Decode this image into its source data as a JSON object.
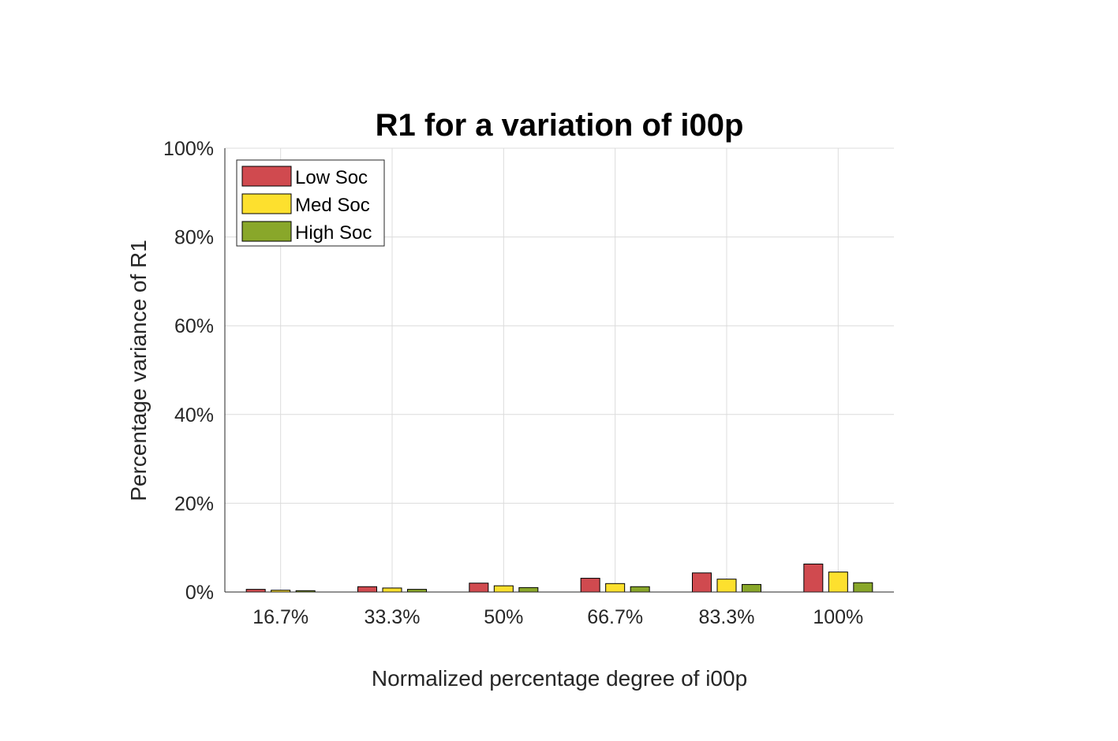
{
  "chart_data": {
    "type": "bar",
    "title": "R1 for a variation of i00p",
    "xlabel": "Normalized percentage degree of i00p",
    "ylabel": "Percentage variance of R1",
    "categories": [
      "16.7%",
      "33.3%",
      "50%",
      "66.7%",
      "83.3%",
      "100%"
    ],
    "series": [
      {
        "name": "Low Soc",
        "color": "#d04a4f",
        "values": [
          0.6,
          1.2,
          2.0,
          3.1,
          4.3,
          6.3
        ]
      },
      {
        "name": "Med Soc",
        "color": "#fde02e",
        "values": [
          0.4,
          0.9,
          1.4,
          1.9,
          2.9,
          4.5
        ]
      },
      {
        "name": "High Soc",
        "color": "#89a72a",
        "values": [
          0.3,
          0.6,
          1.0,
          1.2,
          1.7,
          2.1
        ]
      }
    ],
    "ylim": [
      0,
      100
    ],
    "yticks": [
      0,
      20,
      40,
      60,
      80,
      100
    ],
    "ytick_labels": [
      "0%",
      "20%",
      "40%",
      "60%",
      "80%",
      "100%"
    ],
    "grid": true,
    "legend_position": "top-left"
  }
}
